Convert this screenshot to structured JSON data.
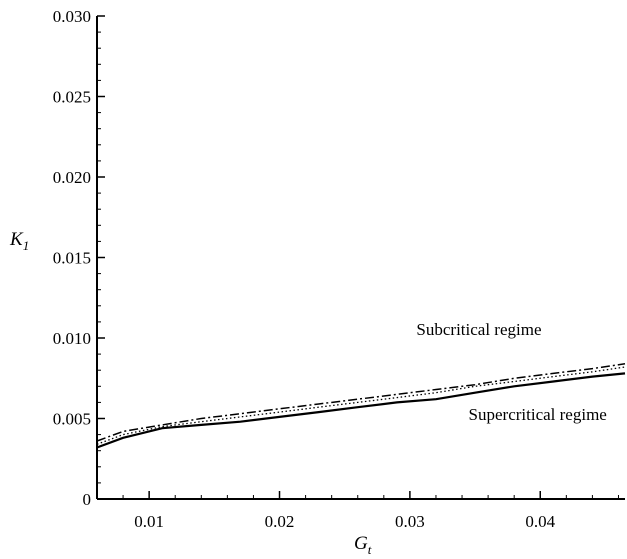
{
  "chart_data": {
    "type": "line",
    "title": "",
    "xlabel": {
      "main": "G",
      "sub": "t"
    },
    "ylabel": {
      "main": "K",
      "sub": "1"
    },
    "xlim": [
      0.006,
      0.0465
    ],
    "ylim": [
      0,
      0.03
    ],
    "x_ticks": [
      "0.01",
      "0.02",
      "0.03",
      "0.04"
    ],
    "x_tick_values": [
      0.01,
      0.02,
      0.03,
      0.04
    ],
    "y_ticks": [
      "0",
      "0.005",
      "0.010",
      "0.015",
      "0.020",
      "0.025",
      "0.030"
    ],
    "y_tick_values": [
      0,
      0.005,
      0.01,
      0.015,
      0.02,
      0.025,
      0.03
    ],
    "grid": false,
    "annotations": [
      {
        "text": "Subcritical regime",
        "x": 0.0305,
        "y": 0.0102
      },
      {
        "text": "Supercritical regime",
        "x": 0.0345,
        "y": 0.0049
      }
    ],
    "series": [
      {
        "style": "solid",
        "color": "#000000",
        "x": [
          0.006,
          0.008,
          0.011,
          0.014,
          0.017,
          0.02,
          0.023,
          0.026,
          0.029,
          0.032,
          0.035,
          0.038,
          0.041,
          0.044,
          0.0465
        ],
        "y": [
          0.0032,
          0.0038,
          0.0044,
          0.0046,
          0.0048,
          0.0051,
          0.0054,
          0.0057,
          0.006,
          0.0062,
          0.0066,
          0.007,
          0.0073,
          0.0076,
          0.0078
        ]
      },
      {
        "style": "dotted",
        "color": "#000000",
        "x": [
          0.006,
          0.008,
          0.011,
          0.014,
          0.017,
          0.02,
          0.023,
          0.026,
          0.029,
          0.032,
          0.035,
          0.038,
          0.041,
          0.044,
          0.0465
        ],
        "y": [
          0.0034,
          0.004,
          0.0045,
          0.0048,
          0.0051,
          0.0054,
          0.0057,
          0.006,
          0.0063,
          0.0066,
          0.007,
          0.0073,
          0.0076,
          0.0079,
          0.0082
        ]
      },
      {
        "style": "dashdot",
        "color": "#000000",
        "x": [
          0.006,
          0.008,
          0.011,
          0.014,
          0.017,
          0.02,
          0.023,
          0.026,
          0.029,
          0.032,
          0.035,
          0.038,
          0.041,
          0.044,
          0.0465
        ],
        "y": [
          0.0036,
          0.0042,
          0.0046,
          0.005,
          0.0053,
          0.0056,
          0.0059,
          0.0062,
          0.0065,
          0.0068,
          0.0071,
          0.0075,
          0.0078,
          0.0081,
          0.0084
        ]
      }
    ]
  }
}
